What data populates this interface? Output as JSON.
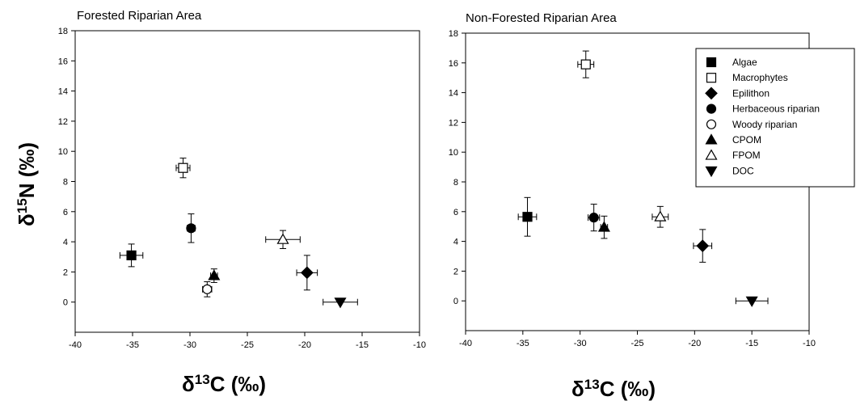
{
  "chart_data": [
    {
      "type": "scatter",
      "title": "Forested Riparian Area",
      "xlabel_main": "δ",
      "xlabel_sup": "13",
      "xlabel_rest": "C (‰)",
      "ylabel_main": "δ",
      "ylabel_sup": "15",
      "ylabel_rest": "N (‰)",
      "xlim": [
        -40,
        -10
      ],
      "ylim": [
        -2,
        18
      ],
      "xticks": [
        -40,
        -35,
        -30,
        -25,
        -20,
        -15,
        -10
      ],
      "yticks": [
        0,
        2,
        4,
        6,
        8,
        10,
        12,
        14,
        16,
        18
      ],
      "legend": false,
      "points": [
        {
          "name": "Algae",
          "x": -35.1,
          "y": 3.1,
          "xerr": 1.0,
          "yerr": 0.75
        },
        {
          "name": "Macrophytes",
          "x": -30.6,
          "y": 8.9,
          "xerr": 0.6,
          "yerr": 0.65
        },
        {
          "name": "Epilithon",
          "x": -19.8,
          "y": 1.95,
          "xerr": 0.9,
          "yerr": 1.15
        },
        {
          "name": "Herbaceous riparian",
          "x": -29.9,
          "y": 4.9,
          "xerr": 0.35,
          "yerr": 0.95
        },
        {
          "name": "Woody riparian",
          "x": -28.5,
          "y": 0.85,
          "xerr": 0.4,
          "yerr": 0.5
        },
        {
          "name": "CPOM",
          "x": -27.9,
          "y": 1.75,
          "xerr": 0.3,
          "yerr": 0.45
        },
        {
          "name": "FPOM",
          "x": -21.9,
          "y": 4.15,
          "xerr": 1.5,
          "yerr": 0.6
        },
        {
          "name": "DOC",
          "x": -16.9,
          "y": 0.0,
          "xerr": 1.5,
          "yerr": 0.0
        }
      ]
    },
    {
      "type": "scatter",
      "title": "Non-Forested Riparian Area",
      "xlabel_main": "δ",
      "xlabel_sup": "13",
      "xlabel_rest": "C (‰)",
      "xlim": [
        -40,
        -10
      ],
      "ylim": [
        -2,
        18
      ],
      "xticks": [
        -40,
        -35,
        -30,
        -25,
        -20,
        -15,
        -10
      ],
      "yticks": [
        0,
        2,
        4,
        6,
        8,
        10,
        12,
        14,
        16,
        18
      ],
      "legend": true,
      "legend_placement": "top-right",
      "points": [
        {
          "name": "Algae",
          "x": -34.6,
          "y": 5.65,
          "xerr": 0.8,
          "yerr": 1.3
        },
        {
          "name": "Macrophytes",
          "x": -29.5,
          "y": 15.9,
          "xerr": 0.7,
          "yerr": 0.9
        },
        {
          "name": "Epilithon",
          "x": -19.3,
          "y": 3.7,
          "xerr": 0.8,
          "yerr": 1.1
        },
        {
          "name": "Herbaceous riparian",
          "x": -28.8,
          "y": 5.6,
          "xerr": 0.5,
          "yerr": 0.9
        },
        {
          "name": "CPOM",
          "x": -27.9,
          "y": 4.95,
          "xerr": 0.3,
          "yerr": 0.75
        },
        {
          "name": "FPOM",
          "x": -23.0,
          "y": 5.65,
          "xerr": 0.7,
          "yerr": 0.7
        },
        {
          "name": "DOC",
          "x": -15.0,
          "y": 0.0,
          "xerr": 1.4,
          "yerr": 0.0
        }
      ]
    }
  ],
  "legend": {
    "entries": [
      {
        "label": "Algae",
        "marker": "square-filled"
      },
      {
        "label": "Macrophytes",
        "marker": "square-open"
      },
      {
        "label": "Epilithon",
        "marker": "diamond-filled"
      },
      {
        "label": "Herbaceous riparian",
        "marker": "circle-filled"
      },
      {
        "label": "Woody riparian",
        "marker": "circle-open"
      },
      {
        "label": "CPOM",
        "marker": "triangle-up-filled"
      },
      {
        "label": "FPOM",
        "marker": "triangle-up-open"
      },
      {
        "label": "DOC",
        "marker": "triangle-down-filled"
      }
    ]
  }
}
